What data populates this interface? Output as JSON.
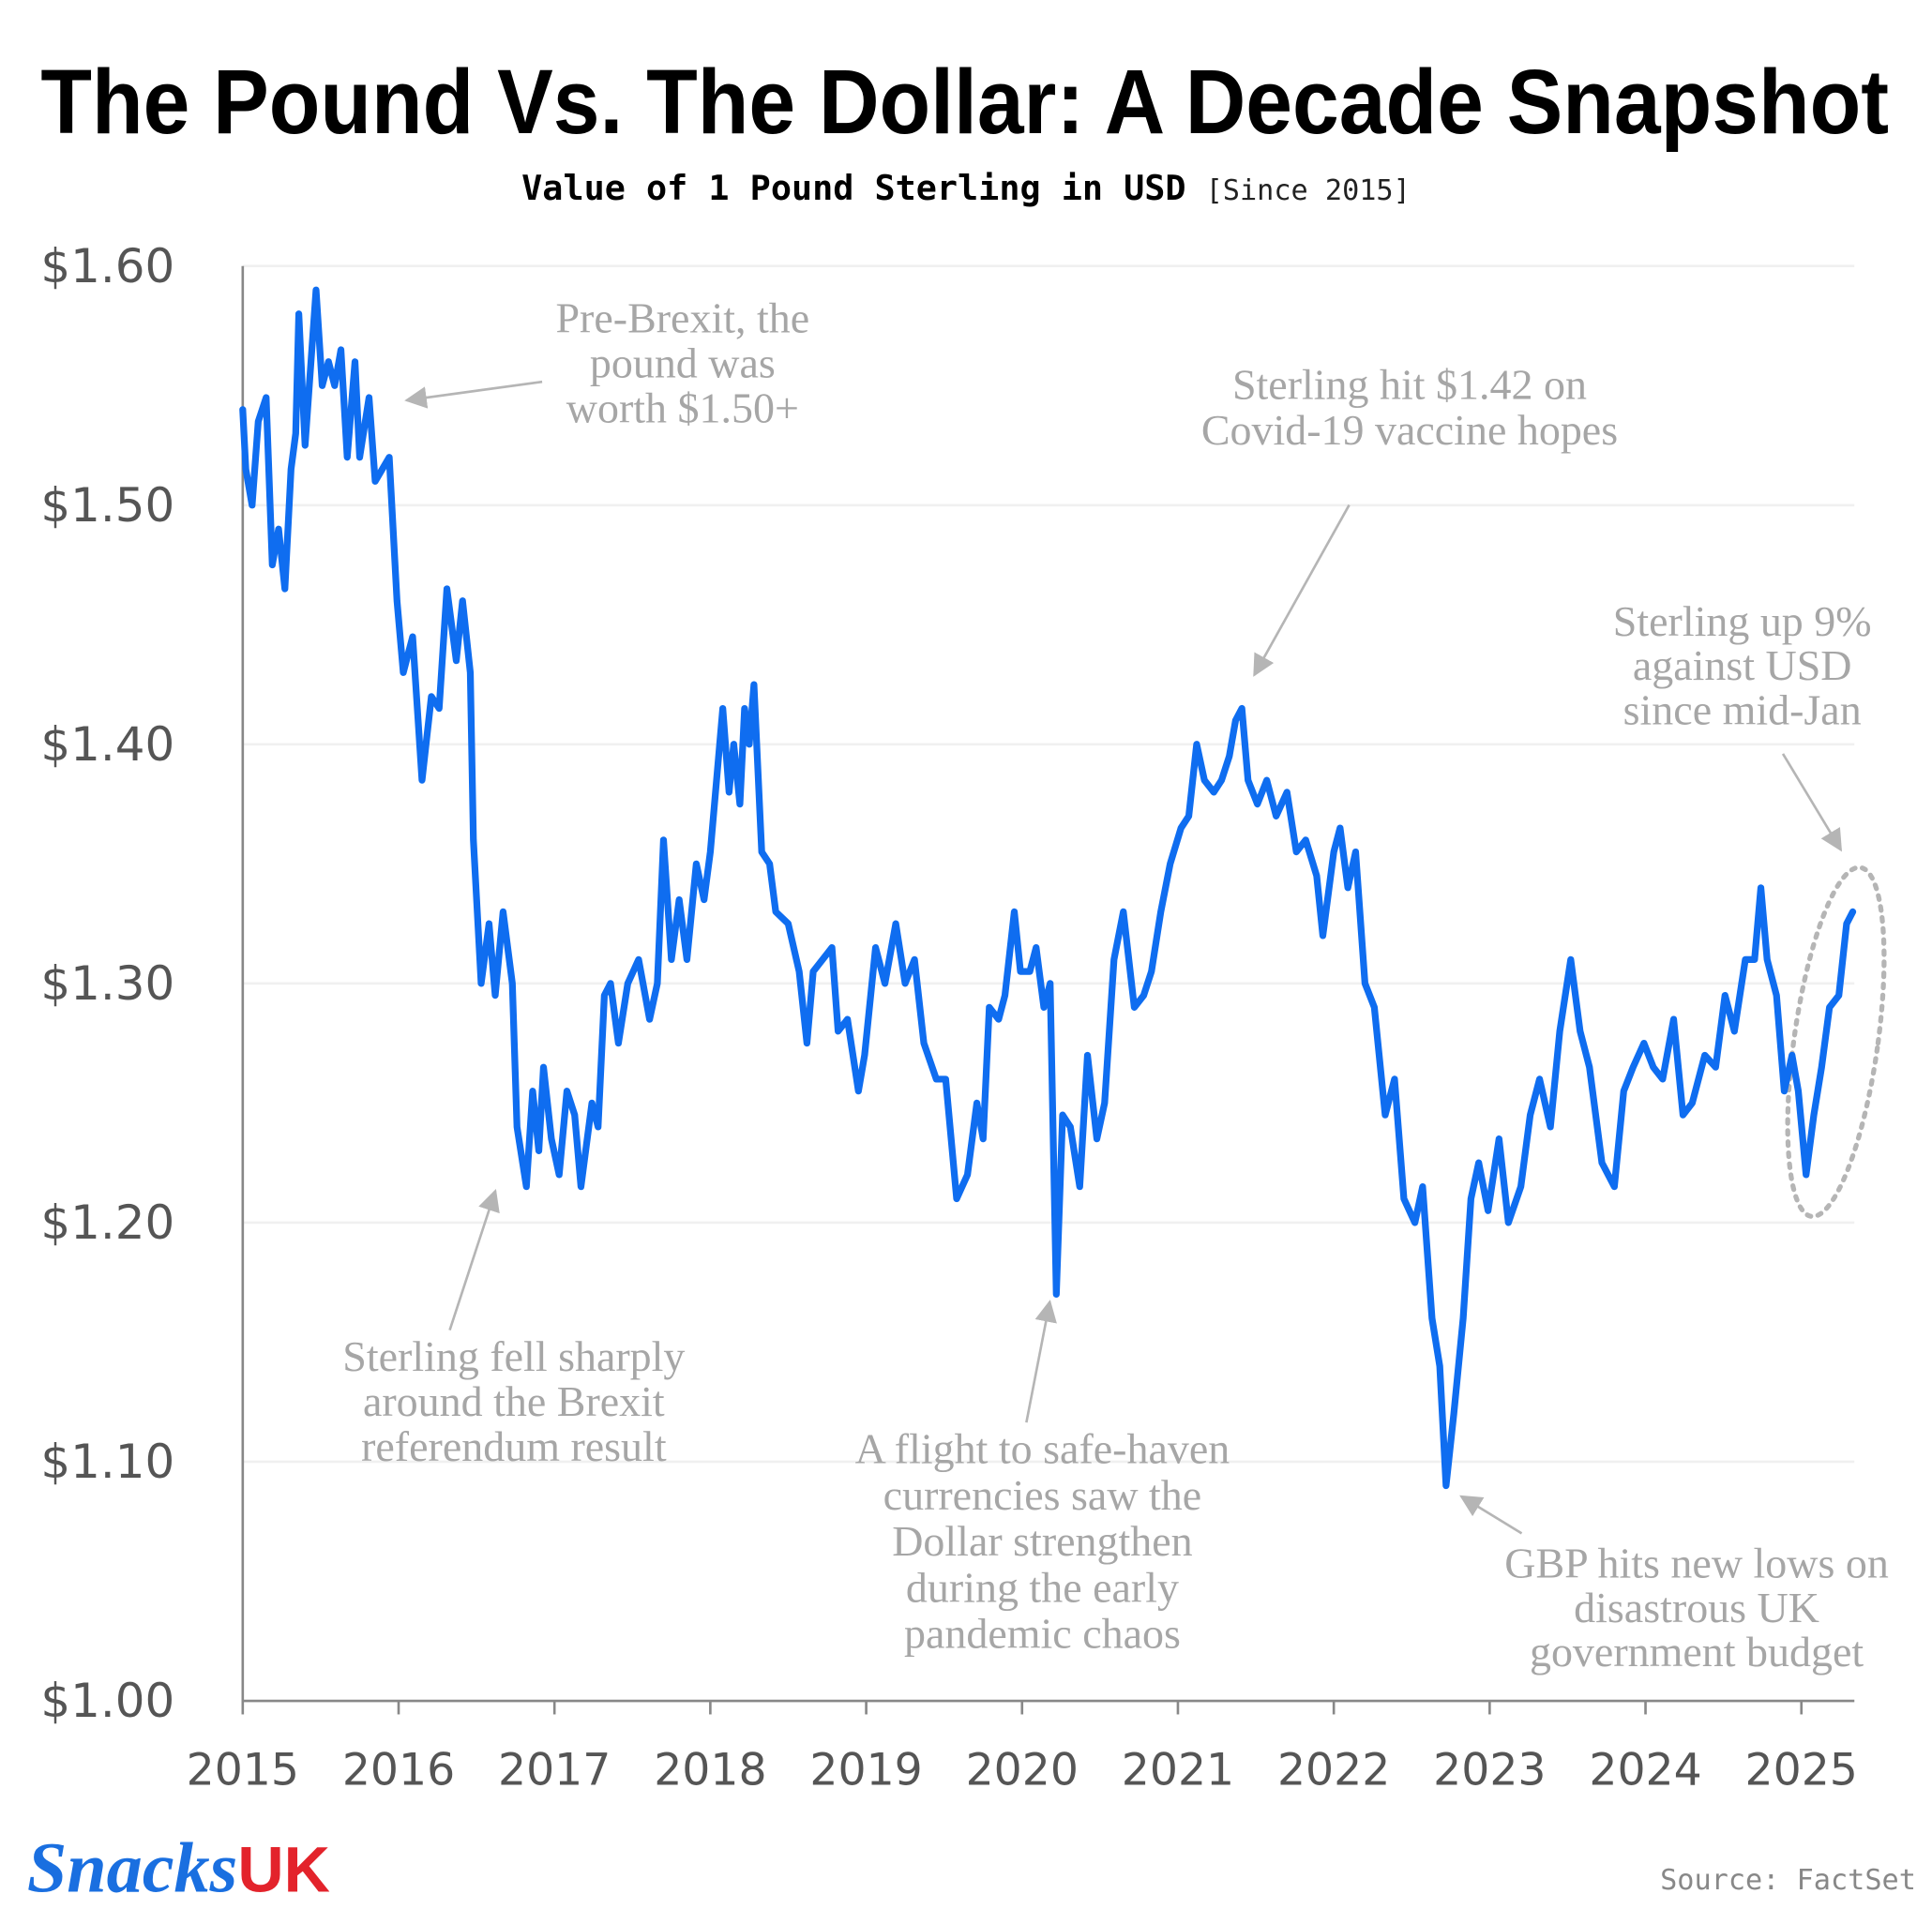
{
  "chart_data": {
    "type": "line",
    "title": "The Pound Vs. The Dollar: A Decade Snapshot",
    "subtitle": "Value of 1 Pound Sterling in USD",
    "subtitle_note": "[Since 2015]",
    "source": "Source: FactSet",
    "logo": {
      "brand": "Snacks",
      "suffix": "UK"
    },
    "color": "#0f6df0",
    "grid": true,
    "xlim": [
      2015,
      2025.34
    ],
    "xticks": [
      2015,
      2016,
      2017,
      2018,
      2019,
      2020,
      2021,
      2022,
      2023,
      2024,
      2025
    ],
    "ylim": [
      1.0,
      1.6
    ],
    "yticks": [
      {
        "value": 1.0,
        "label": "$1.00"
      },
      {
        "value": 1.1,
        "label": "$1.10"
      },
      {
        "value": 1.2,
        "label": "$1.20"
      },
      {
        "value": 1.3,
        "label": "$1.30"
      },
      {
        "value": 1.4,
        "label": "$1.40"
      },
      {
        "value": 1.5,
        "label": "$1.50"
      },
      {
        "value": 1.6,
        "label": "$1.60"
      }
    ],
    "x": [
      2015.0,
      2015.02,
      2015.06,
      2015.1,
      2015.15,
      2015.19,
      2015.23,
      2015.27,
      2015.31,
      2015.34,
      2015.36,
      2015.4,
      2015.47,
      2015.51,
      2015.55,
      2015.59,
      2015.63,
      2015.67,
      2015.72,
      2015.75,
      2015.81,
      2015.85,
      2015.94,
      2015.99,
      2016.03,
      2016.09,
      2016.15,
      2016.21,
      2016.26,
      2016.31,
      2016.37,
      2016.41,
      2016.46,
      2016.48,
      2016.53,
      2016.58,
      2016.62,
      2016.67,
      2016.73,
      2016.76,
      2016.82,
      2016.86,
      2016.9,
      2016.93,
      2016.98,
      2017.03,
      2017.08,
      2017.13,
      2017.17,
      2017.24,
      2017.28,
      2017.32,
      2017.36,
      2017.41,
      2017.47,
      2017.54,
      2017.61,
      2017.66,
      2017.7,
      2017.75,
      2017.8,
      2017.85,
      2017.91,
      2017.96,
      2018.0,
      2018.08,
      2018.12,
      2018.15,
      2018.19,
      2018.22,
      2018.25,
      2018.28,
      2018.33,
      2018.38,
      2018.42,
      2018.5,
      2018.57,
      2018.62,
      2018.66,
      2018.72,
      2018.78,
      2018.82,
      2018.88,
      2018.95,
      2018.99,
      2019.06,
      2019.12,
      2019.19,
      2019.25,
      2019.31,
      2019.37,
      2019.45,
      2019.51,
      2019.58,
      2019.65,
      2019.71,
      2019.75,
      2019.79,
      2019.85,
      2019.89,
      2019.95,
      2019.99,
      2020.05,
      2020.09,
      2020.14,
      2020.18,
      2020.22,
      2020.26,
      2020.31,
      2020.37,
      2020.42,
      2020.48,
      2020.53,
      2020.59,
      2020.65,
      2020.72,
      2020.78,
      2020.83,
      2020.89,
      2020.95,
      2021.02,
      2021.07,
      2021.12,
      2021.17,
      2021.23,
      2021.28,
      2021.33,
      2021.37,
      2021.41,
      2021.45,
      2021.51,
      2021.57,
      2021.63,
      2021.7,
      2021.76,
      2021.82,
      2021.89,
      2021.93,
      2022.0,
      2022.04,
      2022.09,
      2022.14,
      2022.2,
      2022.26,
      2022.33,
      2022.39,
      2022.45,
      2022.52,
      2022.57,
      2022.63,
      2022.68,
      2022.72,
      2022.77,
      2022.83,
      2022.88,
      2022.93,
      2022.99,
      2023.06,
      2023.12,
      2023.2,
      2023.26,
      2023.32,
      2023.39,
      2023.45,
      2023.52,
      2023.58,
      2023.64,
      2023.72,
      2023.8,
      2023.86,
      2023.92,
      2023.99,
      2024.05,
      2024.11,
      2024.18,
      2024.24,
      2024.3,
      2024.38,
      2024.45,
      2024.51,
      2024.57,
      2024.64,
      2024.7,
      2024.74,
      2024.78,
      2024.84,
      2024.89,
      2024.94,
      2024.98,
      2025.03,
      2025.08,
      2025.13,
      2025.18,
      2025.24,
      2025.29,
      2025.33
    ],
    "values": [
      1.54,
      1.515,
      1.5,
      1.535,
      1.545,
      1.475,
      1.49,
      1.465,
      1.515,
      1.53,
      1.58,
      1.525,
      1.59,
      1.55,
      1.56,
      1.55,
      1.565,
      1.52,
      1.56,
      1.52,
      1.545,
      1.51,
      1.52,
      1.46,
      1.43,
      1.445,
      1.385,
      1.42,
      1.415,
      1.465,
      1.435,
      1.46,
      1.43,
      1.36,
      1.3,
      1.325,
      1.295,
      1.33,
      1.3,
      1.24,
      1.215,
      1.255,
      1.23,
      1.265,
      1.235,
      1.22,
      1.255,
      1.245,
      1.215,
      1.25,
      1.24,
      1.295,
      1.3,
      1.275,
      1.3,
      1.31,
      1.285,
      1.3,
      1.36,
      1.31,
      1.335,
      1.31,
      1.35,
      1.335,
      1.355,
      1.415,
      1.38,
      1.4,
      1.375,
      1.415,
      1.4,
      1.425,
      1.355,
      1.35,
      1.33,
      1.325,
      1.305,
      1.275,
      1.305,
      1.31,
      1.315,
      1.28,
      1.285,
      1.255,
      1.27,
      1.315,
      1.3,
      1.325,
      1.3,
      1.31,
      1.275,
      1.26,
      1.26,
      1.21,
      1.22,
      1.25,
      1.235,
      1.29,
      1.285,
      1.295,
      1.33,
      1.305,
      1.305,
      1.315,
      1.29,
      1.3,
      1.17,
      1.245,
      1.24,
      1.215,
      1.27,
      1.235,
      1.25,
      1.31,
      1.33,
      1.29,
      1.295,
      1.305,
      1.33,
      1.35,
      1.365,
      1.37,
      1.4,
      1.385,
      1.38,
      1.385,
      1.395,
      1.41,
      1.415,
      1.385,
      1.375,
      1.385,
      1.37,
      1.38,
      1.355,
      1.36,
      1.345,
      1.32,
      1.355,
      1.365,
      1.34,
      1.355,
      1.3,
      1.29,
      1.245,
      1.26,
      1.21,
      1.2,
      1.215,
      1.16,
      1.14,
      1.09,
      1.12,
      1.16,
      1.21,
      1.225,
      1.205,
      1.235,
      1.2,
      1.215,
      1.245,
      1.26,
      1.24,
      1.28,
      1.31,
      1.28,
      1.265,
      1.225,
      1.215,
      1.255,
      1.265,
      1.275,
      1.265,
      1.26,
      1.285,
      1.245,
      1.25,
      1.27,
      1.265,
      1.295,
      1.28,
      1.31,
      1.31,
      1.34,
      1.31,
      1.295,
      1.255,
      1.27,
      1.255,
      1.22,
      1.245,
      1.265,
      1.29,
      1.295,
      1.325,
      1.33
    ],
    "annotations": [
      {
        "lines": [
          "Pre-Brexit, the",
          "pound was",
          "worth $1.50+"
        ]
      },
      {
        "lines": [
          "Sterling hit $1.42 on",
          "Covid-19 vaccine hopes"
        ]
      },
      {
        "lines": [
          "Sterling up 9%",
          "against USD",
          "since mid-Jan"
        ]
      },
      {
        "lines": [
          "Sterling fell sharply",
          "around the Brexit",
          "referendum result"
        ]
      },
      {
        "lines": [
          "A flight to safe-haven",
          "currencies saw the",
          "Dollar strengthen",
          "during the early",
          "pandemic chaos"
        ]
      },
      {
        "lines": [
          "GBP hits new lows on",
          "disastrous UK",
          "government budget"
        ]
      }
    ]
  }
}
